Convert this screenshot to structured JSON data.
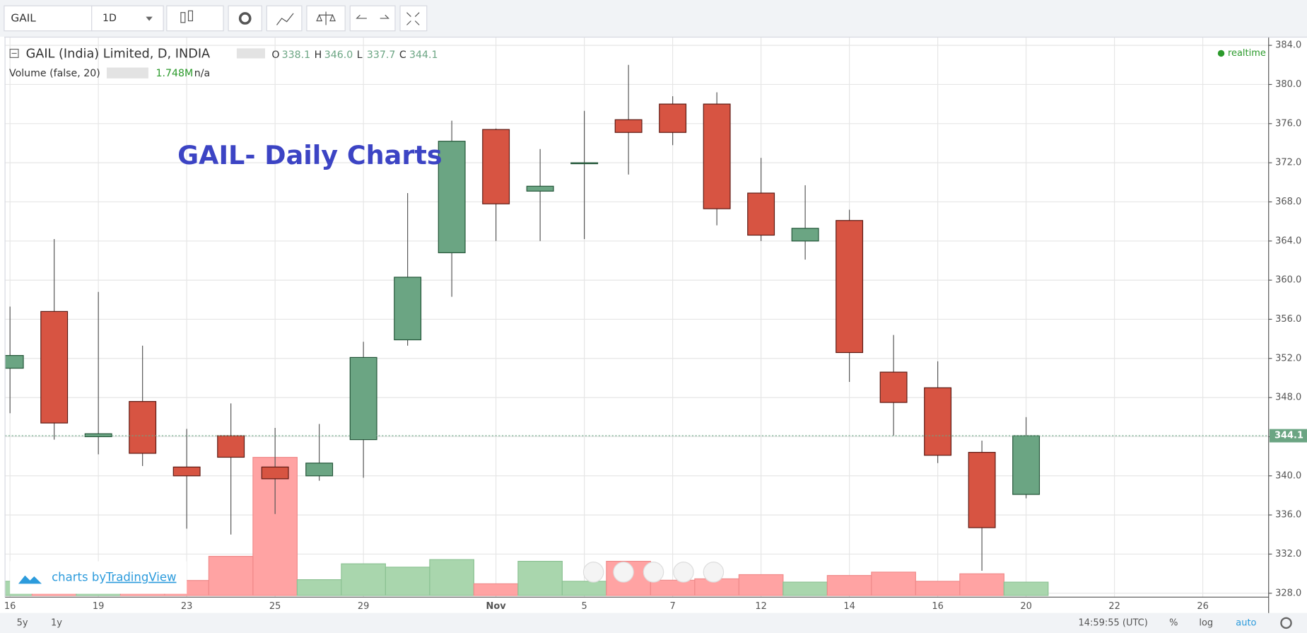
{
  "toolbar": {
    "symbol": "GAIL",
    "interval": "1D"
  },
  "chart_data": {
    "type": "candlestick",
    "title": "GAIL- Daily Charts",
    "symbol_label": "GAIL (India) Limited, D, INDIA",
    "ohlc_legend": [
      {
        "key": "O",
        "text": "338.1"
      },
      {
        "key": "H",
        "text": "346.0"
      },
      {
        "key": "L",
        "text": "337.7"
      },
      {
        "key": "C",
        "text": "344.1"
      }
    ],
    "volume_label": "Volume (false, 20)",
    "volume_text": "1.748M",
    "volume_ma_text": "n/a",
    "status": "realtime",
    "categories": [
      "16",
      null,
      "19",
      null,
      "23",
      null,
      "25",
      null,
      "29",
      null,
      null,
      "Nov",
      null,
      "5",
      null,
      "7",
      null,
      "12",
      null,
      "14",
      null,
      "16",
      null,
      "20",
      null,
      "22",
      null,
      "26"
    ],
    "open": [
      351.0,
      356.8,
      344.0,
      347.6,
      340.9,
      344.1,
      340.9,
      340.0,
      343.7,
      353.9,
      362.8,
      375.4,
      369.1,
      371.9,
      376.4,
      378.0,
      378.0,
      368.9,
      364.0,
      366.1,
      350.6,
      349.0,
      342.4,
      338.1,
      null,
      null,
      null,
      null
    ],
    "high": [
      357.3,
      364.2,
      358.8,
      353.3,
      344.8,
      347.4,
      344.9,
      345.3,
      353.7,
      368.9,
      376.3,
      375.5,
      373.4,
      377.3,
      382.0,
      378.8,
      379.2,
      372.5,
      369.7,
      367.2,
      354.4,
      351.7,
      343.6,
      346.0,
      null,
      null,
      null,
      null
    ],
    "low": [
      346.4,
      343.7,
      342.2,
      341.0,
      334.6,
      334.0,
      336.1,
      339.5,
      339.8,
      353.3,
      358.3,
      364.0,
      364.0,
      364.2,
      370.8,
      373.8,
      365.6,
      364.0,
      362.1,
      349.6,
      344.1,
      341.3,
      330.3,
      337.7,
      null,
      null,
      null,
      null
    ],
    "close": [
      352.3,
      345.4,
      344.3,
      342.3,
      340.0,
      341.9,
      339.7,
      341.3,
      352.1,
      360.3,
      374.2,
      367.8,
      369.6,
      372.0,
      375.1,
      375.1,
      367.3,
      364.6,
      365.3,
      352.6,
      347.5,
      342.1,
      334.7,
      344.1,
      null,
      null,
      null,
      null
    ],
    "volume": [
      1.86,
      1.0,
      0.65,
      1.0,
      1.97,
      5.13,
      18.1,
      2.07,
      4.15,
      3.71,
      4.7,
      1.53,
      4.48,
      1.86,
      4.48,
      2.0,
      2.18,
      2.73,
      1.75,
      2.62,
      3.06,
      1.86,
      2.84,
      1.748,
      null,
      null,
      null,
      null
    ],
    "up_color": "#6ba583",
    "down_color": "#d75442",
    "volume_up_color": "#a9d6ad",
    "volume_down_color": "#ffa3a3",
    "ylim": [
      327.6,
      384.8
    ],
    "yticks": [
      {
        "value": 328,
        "label": "328.0"
      },
      {
        "value": 332,
        "label": "332.0"
      },
      {
        "value": 336,
        "label": "336.0"
      },
      {
        "value": 340,
        "label": "340.0"
      },
      {
        "value": 344,
        "label": "344.0"
      },
      {
        "value": 348,
        "label": "348.0"
      },
      {
        "value": 352,
        "label": "352.0"
      },
      {
        "value": 356,
        "label": "356.0"
      },
      {
        "value": 360,
        "label": "360.0"
      },
      {
        "value": 364,
        "label": "364.0"
      },
      {
        "value": 368,
        "label": "368.0"
      },
      {
        "value": 372,
        "label": "372.0"
      },
      {
        "value": 376,
        "label": "376.0"
      },
      {
        "value": 380,
        "label": "380.0"
      },
      {
        "value": 384,
        "label": "384.0"
      }
    ],
    "last_price": 344.1,
    "grid": true
  },
  "branding": {
    "prefix": "charts by",
    "brand": "TradingView"
  },
  "bottom_bar": {
    "ranges": [
      "5y",
      "1y"
    ],
    "time": "14:59:55 (UTC)",
    "options": [
      "%",
      "log",
      "auto"
    ]
  }
}
